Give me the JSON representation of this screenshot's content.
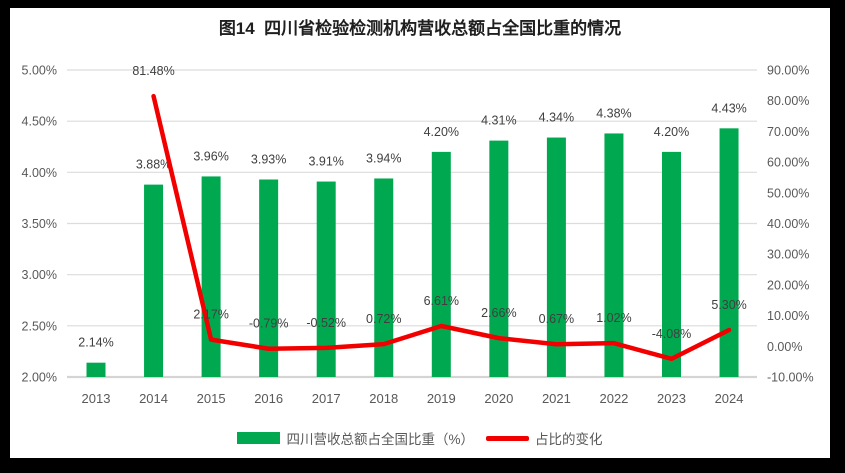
{
  "title": "图14  四川省检验检测机构营收总额占全国比重的情况",
  "legend": [
    {
      "label": "四川营收总额占全国比重（%）",
      "type": "bar"
    },
    {
      "label": "占比的变化",
      "type": "line"
    }
  ],
  "colors": {
    "bar": "#00A950",
    "line": "#F20000",
    "grid": "#DCDCDC",
    "axis_line": "#D5D3D3",
    "axis_text": "#595959",
    "label_text": "#3F3F3F",
    "title_text": "#1F1F1F",
    "frame": "#000000",
    "background": "#FFFFFF"
  },
  "chart_data": {
    "type": "bar+line combo",
    "title": "图14  四川省检验检测机构营收总额占全国比重的情况",
    "categories": [
      "2013",
      "2014",
      "2015",
      "2016",
      "2017",
      "2018",
      "2019",
      "2020",
      "2021",
      "2022",
      "2023",
      "2024"
    ],
    "series": [
      {
        "name": "四川营收总额占全国比重（%）",
        "type": "bar",
        "axis": "left",
        "values": [
          2.14,
          3.88,
          3.96,
          3.93,
          3.91,
          3.94,
          4.2,
          4.31,
          4.34,
          4.38,
          4.2,
          4.43
        ],
        "labels": [
          "2.14%",
          "3.88%",
          "3.96%",
          "3.93%",
          "3.91%",
          "3.94%",
          "4.20%",
          "4.31%",
          "4.34%",
          "4.38%",
          "4.20%",
          "4.43%"
        ]
      },
      {
        "name": "占比的变化",
        "type": "line",
        "axis": "right",
        "values": [
          null,
          81.48,
          2.17,
          -0.79,
          -0.52,
          0.72,
          6.61,
          2.66,
          0.67,
          1.02,
          -4.08,
          5.3
        ],
        "labels": [
          null,
          "81.48%",
          "2.17%",
          "-0.79%",
          "-0.52%",
          "0.72%",
          "6.61%",
          "2.66%",
          "0.67%",
          "1.02%",
          "-4.08%",
          "5.30%"
        ]
      }
    ],
    "left_ylim": [
      2.0,
      5.0
    ],
    "right_ylim": [
      -10.0,
      90.0
    ],
    "left_ticks": [
      "5.00%",
      "4.50%",
      "4.00%",
      "3.50%",
      "3.00%",
      "2.50%",
      "2.00%"
    ],
    "right_ticks": [
      "90.00%",
      "80.00%",
      "70.00%",
      "60.00%",
      "50.00%",
      "40.00%",
      "30.00%",
      "20.00%",
      "10.00%",
      "0.00%",
      "-10.00%"
    ],
    "grid": true,
    "legend_position": "bottom"
  }
}
